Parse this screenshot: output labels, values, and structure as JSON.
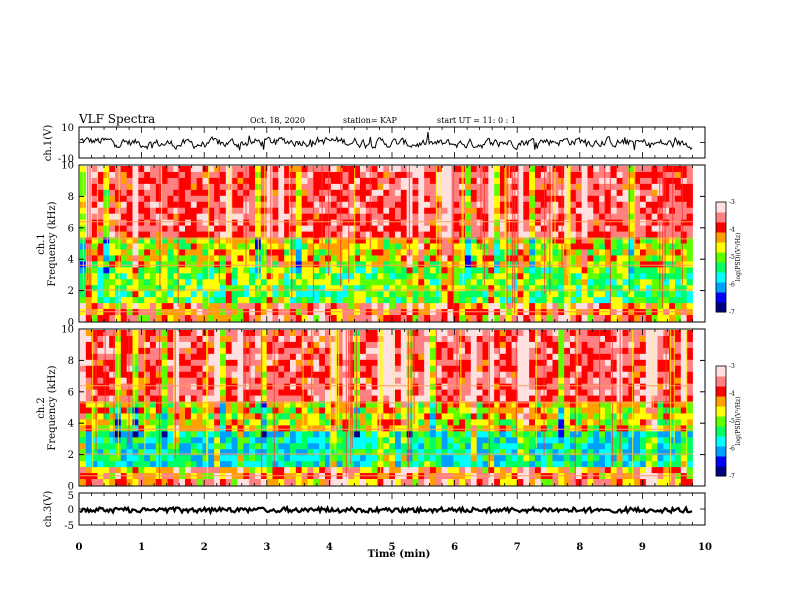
{
  "header": {
    "title": "VLF Spectra",
    "date": "Oct. 18, 2020",
    "station": "station= KAP",
    "start": "start  UT  =   11: 0  : 1"
  },
  "chart_data": [
    {
      "type": "line",
      "name": "ch1-waveform",
      "ylabel": "ch.1(V)",
      "ylim": [
        -10,
        10
      ],
      "ytick_labels": [
        "10",
        "-10"
      ],
      "xlim": [
        0,
        10
      ],
      "trace_color": "#000000"
    },
    {
      "type": "heatmap",
      "name": "ch1-spectrogram",
      "ylabel_line1": "ch.1",
      "ylabel_line2": "Frequency (kHz)",
      "ylim": [
        0,
        10
      ],
      "ytick_labels": [
        "0",
        "2",
        "4",
        "6",
        "8",
        "10"
      ],
      "xlim": [
        0,
        9.8
      ],
      "colorbar": {
        "label": "log(PSD)(V²/Hz)",
        "range": [
          -7,
          -3
        ],
        "tick_labels": [
          "-3",
          "-4",
          "-5",
          "-6",
          "-7"
        ]
      }
    },
    {
      "type": "heatmap",
      "name": "ch2-spectrogram",
      "ylabel_line1": "ch.2",
      "ylabel_line2": "Frequency (kHz)",
      "ylim": [
        0,
        10
      ],
      "ytick_labels": [
        "0",
        "2",
        "4",
        "6",
        "8",
        "10"
      ],
      "xlim": [
        0,
        9.8
      ],
      "colorbar": {
        "label": "log(PSD)(V²/Hz)",
        "range": [
          -7,
          -3
        ],
        "tick_labels": [
          "-3",
          "-4",
          "-5",
          "-6",
          "-7"
        ]
      }
    },
    {
      "type": "line",
      "name": "ch3-waveform",
      "ylabel": "ch.3(V)",
      "ylim": [
        -5,
        5
      ],
      "ytick_labels": [
        "5",
        "0",
        "-5"
      ],
      "xlim": [
        0,
        10
      ],
      "xlabel": "Time  (min)",
      "xtick_labels": [
        "0",
        "1",
        "2",
        "3",
        "4",
        "5",
        "6",
        "7",
        "8",
        "9",
        "10"
      ]
    }
  ],
  "colormap": [
    "#000080",
    "#0000ff",
    "#00a0ff",
    "#00ffff",
    "#00ff60",
    "#60ff00",
    "#ffff00",
    "#ffa000",
    "#ff0000",
    "#ff8080",
    "#ffe0e0"
  ]
}
